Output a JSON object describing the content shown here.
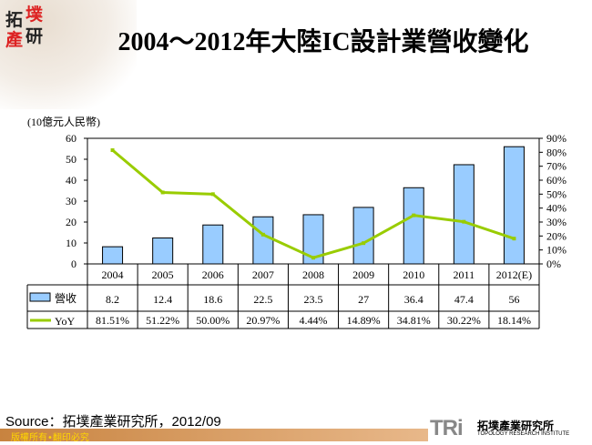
{
  "logo": {
    "chars": [
      "拓",
      "墣",
      "產",
      "研"
    ]
  },
  "title": "2004～2012年大陸IC設計業營收變化",
  "source": "Source：拓墣產業研究所，2012/09",
  "footer": "版權所有•翻印必究",
  "brand": {
    "mark": "TRi",
    "name_cn": "拓墣產業研究所",
    "name_en": "TOPOLOGY RESEARCH INSTITUTE"
  },
  "chart_data": {
    "type": "bar",
    "title": "2004～2012年大陸IC設計業營收變化",
    "ylabel": "(10億元人民幣)",
    "categories": [
      "2004",
      "2005",
      "2006",
      "2007",
      "2008",
      "2009",
      "2010",
      "2011",
      "2012(E)"
    ],
    "series": [
      {
        "name": "營收",
        "type": "bar",
        "axis": "left",
        "color": "#99ccff",
        "values": [
          8.2,
          12.4,
          18.6,
          22.5,
          23.5,
          27,
          36.4,
          47.4,
          56
        ],
        "labels": [
          "8.2",
          "12.4",
          "18.6",
          "22.5",
          "23.5",
          "27",
          "36.4",
          "47.4",
          "56"
        ]
      },
      {
        "name": "YoY",
        "type": "line",
        "axis": "right",
        "color": "#99cc00",
        "values": [
          81.51,
          51.22,
          50.0,
          20.97,
          4.44,
          14.89,
          34.81,
          30.22,
          18.14
        ],
        "labels": [
          "81.51%",
          "51.22%",
          "50.00%",
          "20.97%",
          "4.44%",
          "14.89%",
          "34.81%",
          "30.22%",
          "18.14%"
        ]
      }
    ],
    "ylim": [
      0,
      60
    ],
    "yticks": [
      "0",
      "10",
      "20",
      "30",
      "40",
      "50",
      "60"
    ],
    "y2lim": [
      0,
      90
    ],
    "y2ticks": [
      "0%",
      "10%",
      "20%",
      "30%",
      "40%",
      "50%",
      "60%",
      "70%",
      "80%",
      "90%"
    ],
    "data_table": true,
    "grid": false
  }
}
